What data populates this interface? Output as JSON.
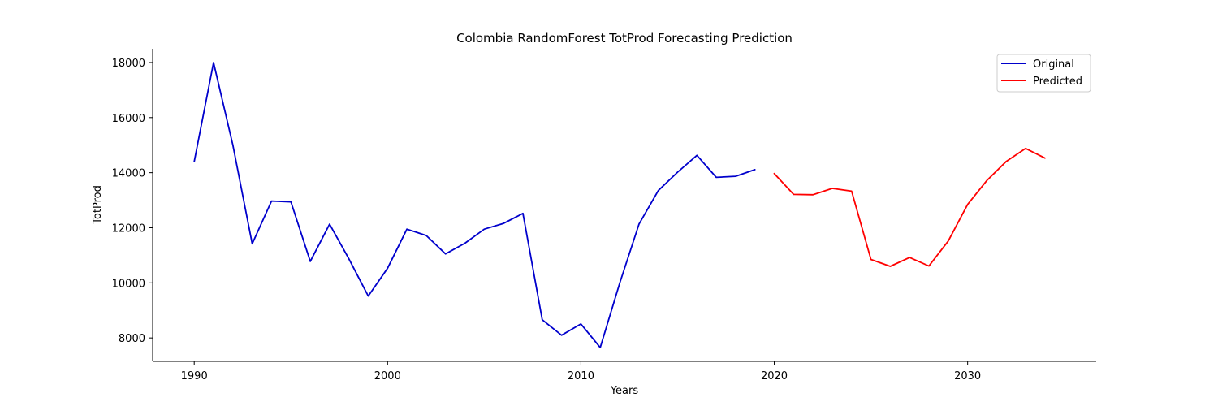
{
  "chart_data": {
    "type": "line",
    "title": "Colombia RandomForest TotProd Forecasting Prediction",
    "xlabel": "Years",
    "ylabel": "TotProd",
    "xlim": [
      1987.85,
      2036.65
    ],
    "ylim": [
      7150,
      18500
    ],
    "xticks": [
      1990,
      2000,
      2010,
      2020,
      2030
    ],
    "yticks": [
      8000,
      10000,
      12000,
      14000,
      16000,
      18000
    ],
    "grid": false,
    "legend_position": "top-right",
    "series": [
      {
        "name": "Original",
        "color": "#0000cc",
        "x": [
          1990,
          1991,
          1992,
          1993,
          1994,
          1995,
          1996,
          1997,
          1998,
          1999,
          2000,
          2001,
          2002,
          2003,
          2004,
          2005,
          2006,
          2007,
          2008,
          2009,
          2010,
          2011,
          2012,
          2013,
          2014,
          2015,
          2016,
          2017,
          2018,
          2019
        ],
        "values": [
          14400,
          18000,
          15000,
          11420,
          12970,
          12940,
          10780,
          12130,
          10870,
          9520,
          10530,
          11950,
          11720,
          11050,
          11440,
          11950,
          12160,
          12520,
          8660,
          8100,
          8510,
          7650,
          9970,
          12130,
          13350,
          14020,
          14630,
          13830,
          13870,
          14110
        ]
      },
      {
        "name": "Predicted",
        "color": "#ff0000",
        "x": [
          2020,
          2021,
          2022,
          2023,
          2024,
          2025,
          2026,
          2027,
          2028,
          2029,
          2030,
          2031,
          2032,
          2033,
          2034
        ],
        "values": [
          13970,
          13210,
          13200,
          13430,
          13330,
          10850,
          10600,
          10920,
          10610,
          11520,
          12850,
          13720,
          14410,
          14880,
          14530
        ]
      }
    ]
  }
}
